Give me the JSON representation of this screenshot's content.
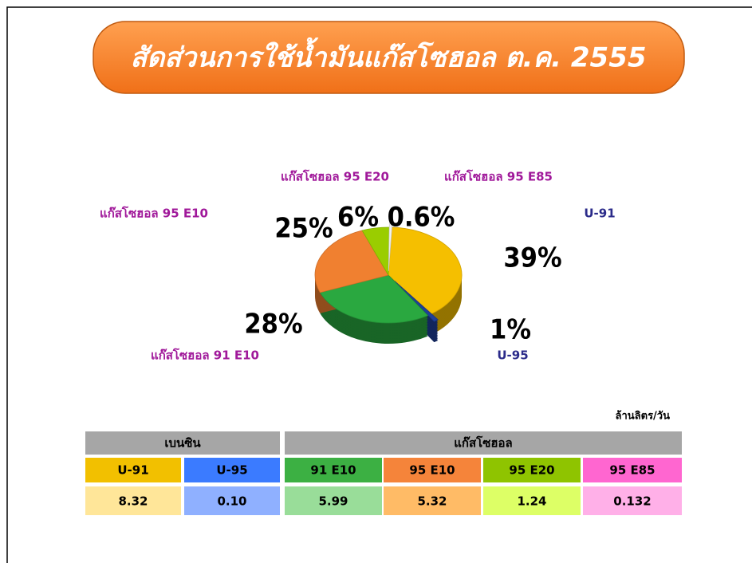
{
  "chart_data": {
    "type": "pie",
    "title": "สัดส่วนการใช้น้ำมันแก๊สโซฮอล ต.ค. 2555",
    "categories": [
      "U-91",
      "U-95",
      "แก๊สโซฮอล 91 E10",
      "แก๊สโซฮอล 95 E10",
      "แก๊สโซฮอล 95 E20",
      "แก๊สโซฮอล 95 E85"
    ],
    "values": [
      39,
      1,
      28,
      25,
      6,
      0.6
    ],
    "value_labels": [
      "39%",
      "1%",
      "28%",
      "25%",
      "6%",
      "0.6%"
    ],
    "colors": [
      "#f5bf00",
      "#1f3f9a",
      "#2aa840",
      "#f08030",
      "#9acd00",
      "#f4f4f4"
    ]
  },
  "table": {
    "unit": "ล้านลิตร/วัน",
    "groups": [
      "เบนซิน",
      "แก๊สโซฮอล"
    ],
    "headers": [
      "U-91",
      "U-95",
      "91 E10",
      "95 E10",
      "95 E20",
      "95 E85"
    ],
    "values": [
      "8.32",
      "0.10",
      "5.99",
      "5.32",
      "1.24",
      "0.132"
    ]
  }
}
